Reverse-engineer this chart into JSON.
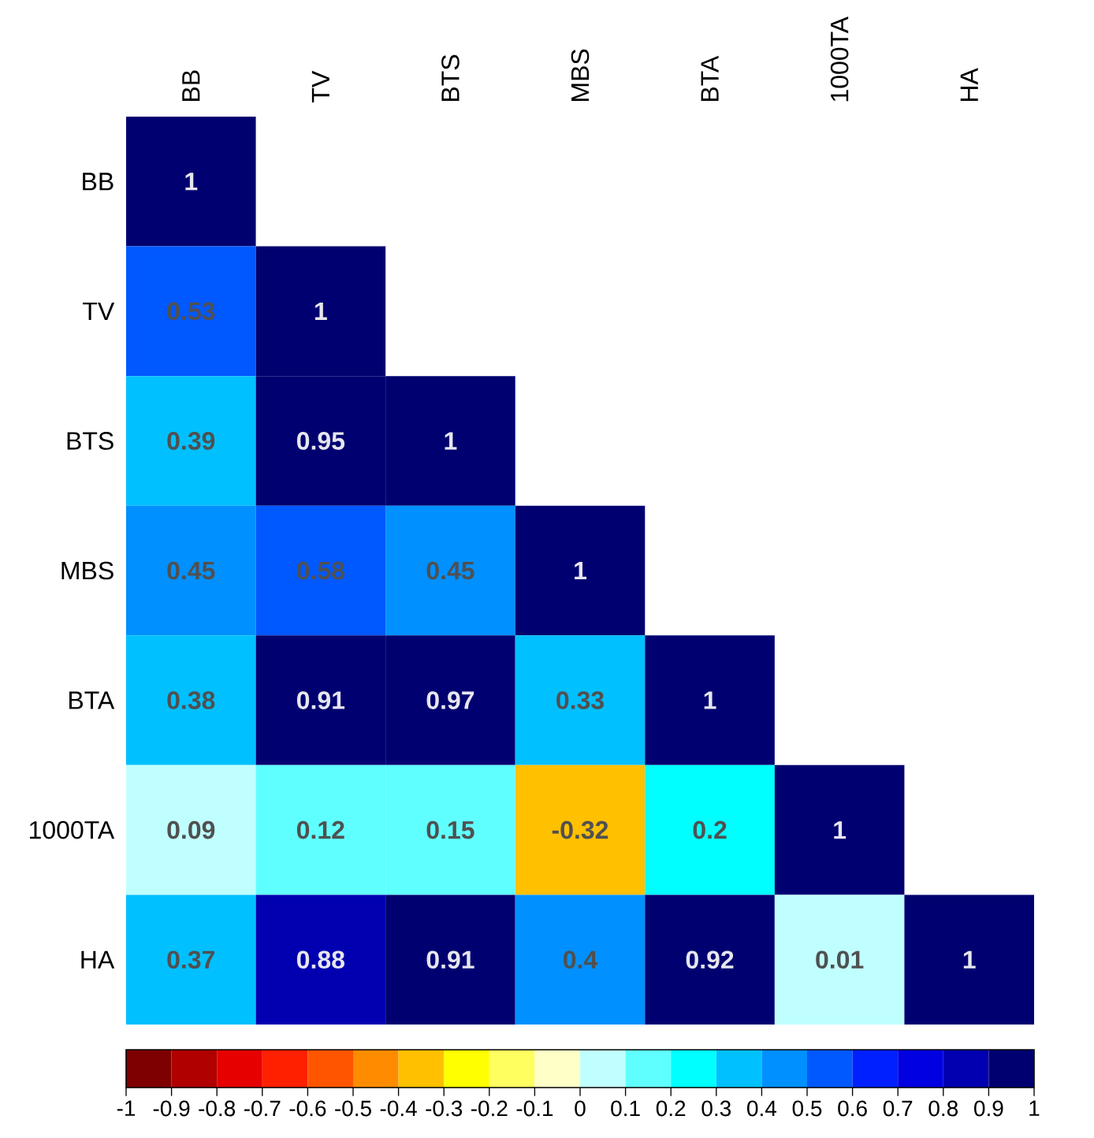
{
  "chart_data": {
    "type": "heatmap",
    "categories": [
      "BB",
      "TV",
      "BTS",
      "MBS",
      "BTA",
      "1000TA",
      "HA"
    ],
    "y_categories": [
      "BB",
      "TV",
      "BTS",
      "MBS",
      "BTA",
      "1000TA",
      "HA"
    ],
    "cells": [
      [
        1,
        null,
        null,
        null,
        null,
        null,
        null
      ],
      [
        0.53,
        1,
        null,
        null,
        null,
        null,
        null
      ],
      [
        0.39,
        0.95,
        1,
        null,
        null,
        null,
        null
      ],
      [
        0.45,
        0.58,
        0.45,
        1,
        null,
        null,
        null
      ],
      [
        0.38,
        0.91,
        0.97,
        0.33,
        1,
        null,
        null
      ],
      [
        0.09,
        0.12,
        0.15,
        -0.32,
        0.2,
        1,
        null
      ],
      [
        0.37,
        0.88,
        0.91,
        0.4,
        0.92,
        0.01,
        1
      ]
    ],
    "data_labels": true,
    "clim": [
      -1,
      1
    ],
    "cticks": [
      -1,
      -0.9,
      -0.8,
      -0.7,
      -0.6,
      -0.5,
      -0.4,
      -0.3,
      -0.2,
      -0.1,
      0,
      0.1,
      0.2,
      0.3,
      0.4,
      0.5,
      0.6,
      0.7,
      0.8,
      0.9,
      1
    ],
    "colors": [
      "#7f0000",
      "#b00000",
      "#e60000",
      "#ff2000",
      "#ff5500",
      "#ff8c00",
      "#ffc000",
      "#ffff00",
      "#ffff60",
      "#ffffc8",
      "#c0ffff",
      "#60ffff",
      "#00ffff",
      "#00c0ff",
      "#0090ff",
      "#0058ff",
      "#0020ff",
      "#0000e0",
      "#0000b0",
      "#000070"
    ]
  }
}
